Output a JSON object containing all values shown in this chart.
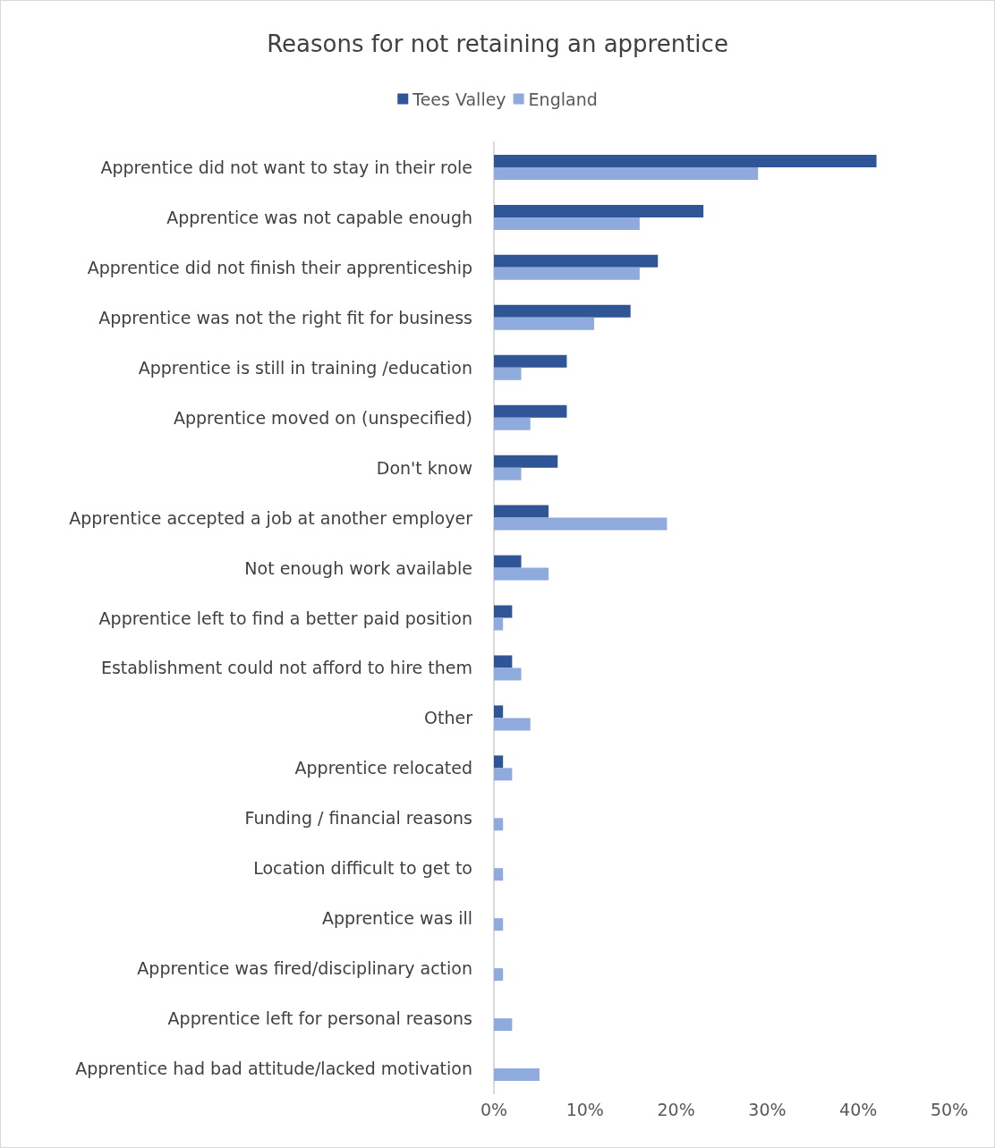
{
  "chart_data": {
    "type": "bar",
    "orientation": "horizontal",
    "title": "Reasons for not retaining an apprentice",
    "categories": [
      "Apprentice did not want to stay in their role",
      "Apprentice was not capable enough",
      "Apprentice did not finish their apprenticeship",
      "Apprentice was not the right fit for business",
      "Apprentice is still in training /education",
      "Apprentice moved on (unspecified)",
      "Don't know",
      "Apprentice accepted a job at another employer",
      "Not enough work available",
      "Apprentice left to find a better paid position",
      "Establishment could not afford to hire them",
      "Other",
      "Apprentice relocated",
      "Funding / financial reasons",
      "Location difficult to get to",
      "Apprentice was ill",
      "Apprentice was fired/disciplinary action",
      "Apprentice left for personal reasons",
      "Apprentice had bad attitude/lacked motivation"
    ],
    "series": [
      {
        "name": "Tees Valley",
        "color": "#2f5597",
        "values": [
          42,
          23,
          18,
          15,
          8,
          8,
          7,
          6,
          3,
          2,
          2,
          1,
          1,
          0,
          0,
          0,
          0,
          0,
          0
        ]
      },
      {
        "name": "England",
        "color": "#8faadc",
        "values": [
          29,
          16,
          16,
          11,
          3,
          4,
          3,
          19,
          6,
          1,
          3,
          4,
          2,
          1,
          1,
          1,
          1,
          2,
          5
        ]
      }
    ],
    "xlim": [
      0,
      50
    ],
    "xticks": [
      {
        "value": 0,
        "label": "0%"
      },
      {
        "value": 10,
        "label": "10%"
      },
      {
        "value": 20,
        "label": "20%"
      },
      {
        "value": 30,
        "label": "30%"
      },
      {
        "value": 40,
        "label": "40%"
      },
      {
        "value": 50,
        "label": "50%"
      }
    ],
    "grid": false,
    "legend": "top"
  }
}
